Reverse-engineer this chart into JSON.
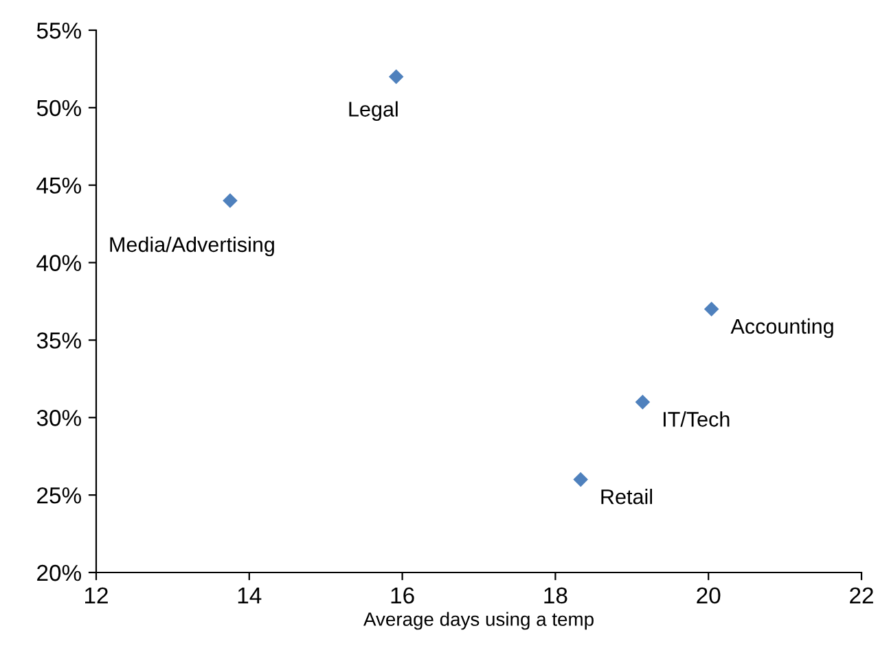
{
  "chart_data": {
    "type": "scatter",
    "xlabel": "Average days using a temp",
    "x": [
      15.92,
      13.75,
      20.04,
      19.14,
      18.33
    ],
    "series": [
      {
        "color": "#4f81bd",
        "values": [
          52,
          44,
          37,
          31,
          26
        ]
      }
    ],
    "marker": "diamond",
    "xlim": [
      12,
      22
    ],
    "xticks": [
      12,
      14,
      16,
      18,
      20,
      22
    ],
    "ylim": [
      20,
      55
    ],
    "yticks": [
      {
        "value": 20,
        "label": "20%"
      },
      {
        "value": 25,
        "label": "25%"
      },
      {
        "value": 30,
        "label": "30%"
      },
      {
        "value": 35,
        "label": "35%"
      },
      {
        "value": 40,
        "label": "40%"
      },
      {
        "value": 45,
        "label": "45%"
      },
      {
        "value": 50,
        "label": "50%"
      },
      {
        "value": 55,
        "label": "55%"
      }
    ],
    "grid": false,
    "legend": false,
    "annotations": [
      {
        "text": "Legal",
        "x": 15.92,
        "y": 52
      },
      {
        "text": "Media/Advertising",
        "x": 13.75,
        "y": 44
      },
      {
        "text": "Accounting",
        "x": 20.04,
        "y": 37
      },
      {
        "text": "IT/Tech",
        "x": 19.14,
        "y": 31
      },
      {
        "text": "Retail",
        "x": 18.33,
        "y": 26
      }
    ]
  }
}
